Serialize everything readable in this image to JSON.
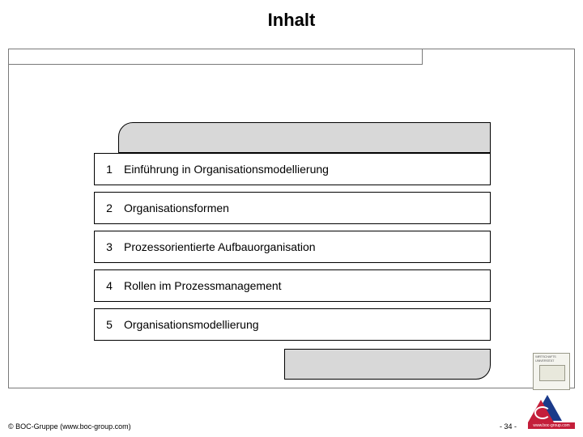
{
  "title": "Inhalt",
  "toc": {
    "items": [
      {
        "num": "1",
        "label": "Einführung in Organisationsmodellierung"
      },
      {
        "num": "2",
        "label": "Organisationsformen"
      },
      {
        "num": "3",
        "label": "Prozessorientierte Aufbauorganisation"
      },
      {
        "num": "4",
        "label": "Rollen im Prozessmanagement"
      },
      {
        "num": "5",
        "label": "Organisationsmodellierung"
      }
    ],
    "row_border_color": "#000000",
    "row_bg": "#ffffff",
    "deco_bg": "#d8d8d8",
    "font_size": 14
  },
  "frame": {
    "border_color": "#7a7a7a"
  },
  "footer": {
    "copyright": "© BOC-Gruppe (www.boc-group.com)",
    "page": "- 34 -"
  },
  "logos": {
    "uni_text": "WIRTSCHAFTS UNIVERSITÄT",
    "boc_url": "www.boc-group.com"
  },
  "colors": {
    "background": "#ffffff",
    "text": "#000000",
    "boc_red": "#c41e3a",
    "boc_blue": "#1a3a8a"
  }
}
